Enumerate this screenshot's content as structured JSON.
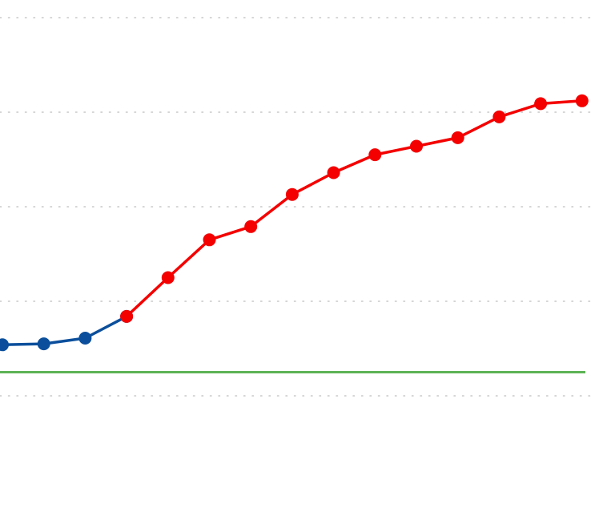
{
  "chart_data": {
    "type": "line",
    "grid": true,
    "legend": "none",
    "ylim": [
      0,
      4
    ],
    "x": [
      0,
      1,
      2,
      3,
      4,
      5,
      6,
      7,
      8,
      9,
      10,
      11,
      12,
      13,
      14
    ],
    "series": [
      {
        "color": "#0b4f9c",
        "x": [
          0,
          1,
          2,
          3
        ],
        "values": [
          0.54,
          0.55,
          0.61,
          0.84
        ]
      },
      {
        "color": "#f40000",
        "x": [
          3,
          4,
          5,
          6,
          7,
          8,
          9,
          10,
          11,
          12,
          13,
          14
        ],
        "values": [
          0.84,
          1.25,
          1.65,
          1.79,
          2.13,
          2.36,
          2.55,
          2.64,
          2.73,
          2.95,
          3.09,
          3.12
        ]
      }
    ],
    "reference_line": {
      "color": "#5db355",
      "value": 0.25
    }
  }
}
